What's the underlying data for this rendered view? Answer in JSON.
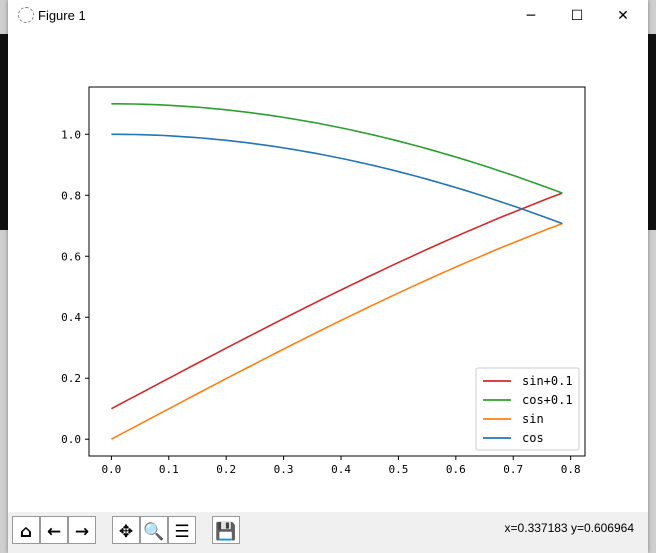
{
  "window": {
    "title": "Figure 1",
    "minimize": "─",
    "maximize": "☐",
    "close": "✕"
  },
  "toolbar": {
    "buttons": [
      {
        "name": "home-button",
        "icon": "home-icon",
        "glyph": "⌂"
      },
      {
        "name": "back-button",
        "icon": "arrow-left-icon",
        "glyph": "←"
      },
      {
        "name": "forward-button",
        "icon": "arrow-right-icon",
        "glyph": "→"
      },
      {
        "name": "pan-button",
        "icon": "move-icon",
        "glyph": "✥"
      },
      {
        "name": "zoom-button",
        "icon": "magnifier-icon",
        "glyph": "🔍"
      },
      {
        "name": "configure-subplots-button",
        "icon": "sliders-icon",
        "glyph": "☰"
      },
      {
        "name": "save-button",
        "icon": "floppy-disk-icon",
        "glyph": "💾"
      }
    ],
    "coords": "x=0.337183    y=0.606964"
  },
  "chart_data": {
    "type": "line",
    "title": "",
    "xlabel": "",
    "ylabel": "",
    "xlim": [
      -0.039,
      0.825
    ],
    "ylim": [
      -0.055,
      1.155
    ],
    "xticks": [
      "0.0",
      "0.1",
      "0.2",
      "0.3",
      "0.4",
      "0.5",
      "0.6",
      "0.7",
      "0.8"
    ],
    "yticks": [
      "0.0",
      "0.2",
      "0.4",
      "0.6",
      "0.8",
      "1.0"
    ],
    "x_range": [
      0,
      0.7854
    ],
    "grid": false,
    "legend_position": "lower right",
    "series": [
      {
        "name": "sin+0.1",
        "function": "sin(x)+0.1",
        "color": "#d62728"
      },
      {
        "name": "cos+0.1",
        "function": "cos(x)+0.1",
        "color": "#2ca02c"
      },
      {
        "name": "sin",
        "function": "sin(x)",
        "color": "#ff7f0e"
      },
      {
        "name": "cos",
        "function": "cos(x)",
        "color": "#1f77b4"
      }
    ]
  }
}
